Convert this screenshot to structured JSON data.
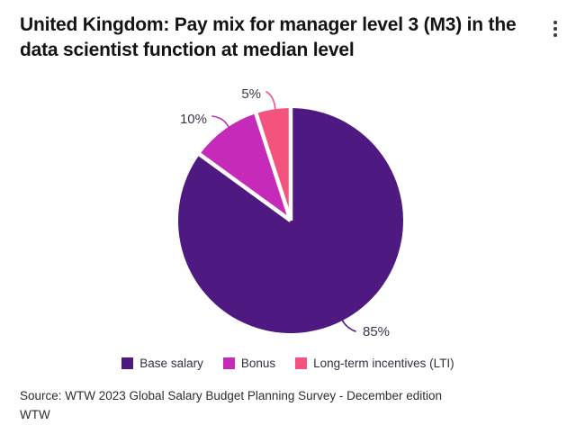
{
  "header": {
    "title": "United Kingdom: Pay mix for manager level 3 (M3) in the data scientist function at median level"
  },
  "menu": {
    "icon": "kebab-menu-icon"
  },
  "chart_data": {
    "type": "pie",
    "title": "United Kingdom: Pay mix for manager level 3 (M3) in the data scientist function at median level",
    "start_angle_deg": 0,
    "direction": "clockwise",
    "legend_position": "bottom",
    "slices": [
      {
        "label": "Base salary",
        "value": 85,
        "data_label": "85%",
        "color": "#4e1a81"
      },
      {
        "label": "Bonus",
        "value": 10,
        "data_label": "10%",
        "color": "#c52ab8"
      },
      {
        "label": "Long-term incentives (LTI)",
        "value": 5,
        "data_label": "5%",
        "color": "#f4537e"
      }
    ]
  },
  "footer": {
    "source_line1": "Source: WTW 2023 Global Salary Budget Planning Survey - December edition",
    "source_line2": "WTW"
  }
}
